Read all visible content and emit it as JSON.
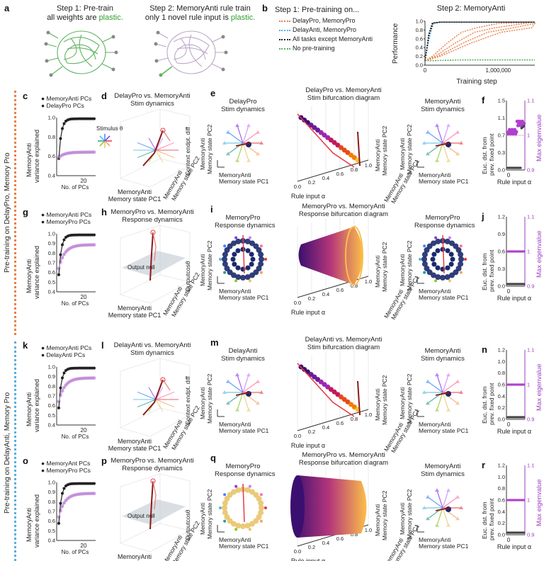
{
  "panel_a": {
    "label": "a",
    "step1_title": "Step 1: Pre-train",
    "step1_sub_pre": "all weights are ",
    "step1_sub_hl": "plastic.",
    "step2_title": "Step 2: MemoryAnti rule train",
    "step2_sub_pre": "only 1 novel rule input is ",
    "step2_sub_hl": "plastic."
  },
  "panel_b": {
    "label": "b",
    "legend_title": "Step 1: Pre-training on...",
    "legend": [
      {
        "label": "DelayPro, MemoryPro",
        "color": "#e8804a"
      },
      {
        "label": "DelayAnti, MemoryPro",
        "color": "#5aaee0"
      },
      {
        "label": "All tasks except MemoryAnti",
        "color": "#222222"
      },
      {
        "label": "No pre-training",
        "color": "#5fb35f"
      }
    ],
    "chart_title": "Step 2: MemoryAnti",
    "ylabel": "Performance",
    "xlabel": "Training step",
    "xtick": "1,000,000",
    "xtick0": "0",
    "yticks": [
      "0.0",
      "0.2",
      "0.4",
      "0.6",
      "0.8",
      "1.0"
    ]
  },
  "side_labels": {
    "top": "Pre-training on DelayPro, Memory Pro",
    "bottom": "Pre-training on DelayAnti, Memory Pro"
  },
  "pc_panels": [
    {
      "label": "c",
      "legend1": "MemoryAnti PCs",
      "legend2": "DelayPro PCs",
      "ylabel1": "MemoryAnti",
      "ylabel2": "variance explained",
      "xlabel": "No. of PCs",
      "xtick": "20",
      "yticks": [
        "0.4",
        "0.6",
        "0.8",
        "1.0"
      ]
    },
    {
      "label": "g",
      "legend1": "MemoryAnti PCs",
      "legend2": "MemoryPro PCs",
      "ylabel1": "MemoryAnti",
      "ylabel2": "variance explained",
      "xlabel": "No. of PCs",
      "xtick": "20",
      "yticks": [
        "0.4",
        "0.5",
        "0.6",
        "0.7",
        "0.8",
        "0.9",
        "1.0"
      ]
    },
    {
      "label": "k",
      "legend1": "MemoryAnti PCs",
      "legend2": "DelayAnti PCs",
      "ylabel1": "MemoryAnti",
      "ylabel2": "variance explained",
      "xlabel": "No. of PCs",
      "xtick": "20",
      "yticks": [
        "0.4",
        "0.5",
        "0.6",
        "0.7",
        "0.8",
        "0.9",
        "1.0"
      ]
    },
    {
      "label": "o",
      "legend1": "MemoryAnt PCs",
      "legend2": "MemoryPro PCs",
      "ylabel1": "MemoryAnti",
      "ylabel2": "variance explained",
      "xlabel": "No. of PCs",
      "xtick": "20",
      "yticks": [
        "0.4",
        "0.5",
        "0.6",
        "0.7",
        "0.8",
        "0.9",
        "1.0"
      ]
    }
  ],
  "dyn3d_panels": [
    {
      "label": "d",
      "title1": "DelayPro vs. MemoryAnti",
      "title2": "Stim dynamics",
      "ax1": "MemoryAnti",
      "ax1b": "Memory state PC1",
      "ax2": "MemoryAnti",
      "ax2b": "Memory state PC2",
      "ax3": "Context endpt. diff",
      "extra": "Stimulus θ"
    },
    {
      "label": "h",
      "title1": "MemoryPro vs. MemoryAnti",
      "title2": "Response dynamics",
      "ax1": "MemoryAnti",
      "ax1b": "Memory state PC1",
      "ax2": "MemoryAnti",
      "ax2b": "Memory state PC2",
      "ax3": "Outputcosθ",
      "extra": "Output null"
    },
    {
      "label": "l",
      "title1": "DelayAnti vs. MemoryAnti",
      "title2": "Stim dynamics",
      "ax1": "MemoryAnti",
      "ax1b": "Memory state PC1",
      "ax2": "MemoryAnti",
      "ax2b": "Memory state PC2",
      "ax3": "Context endpt. diff",
      "extra": ""
    },
    {
      "label": "p",
      "title1": "MemoryPro vs. MemoryAnti",
      "title2": "Response dynamics",
      "ax1": "MemoryAnti",
      "ax1b": "Memory state PC1",
      "ax2": "MemoryAnti",
      "ax2b": "Memory state PC2",
      "ax3": "Outputcosθ",
      "extra": "Output null"
    }
  ],
  "state_panels": [
    {
      "label": "e",
      "title1": "DelayPro",
      "title2": "Stim dynamics",
      "y1": "MemoryAnti",
      "y2": "Memory state PC2",
      "x1": "MemoryAnti",
      "x2": "Memory state PC1"
    },
    {
      "label": "i",
      "title1": "MemoryPro",
      "title2": "Response dynamics",
      "y1": "MemoryAnti",
      "y2": "Memory state PC2",
      "x1": "MemoryAnti",
      "x2": "Memory state PC1"
    },
    {
      "label": "m",
      "title1": "DelayAnti",
      "title2": "Stim dynamics",
      "y1": "MemoryAnti",
      "y2": "Memory state PC2",
      "x1": "MemoryAnti",
      "x2": "Memory state PC1"
    },
    {
      "label": "q",
      "title1": "MemoryPro",
      "title2": "Response dynamics",
      "y1": "MemoryAnti",
      "y2": "Memory state PC2",
      "x1": "MemoryAnti",
      "x2": "Memory state PC1"
    }
  ],
  "bif_panels": [
    {
      "title1": "DelayPro vs. MemoryAnti",
      "title2": "Stim bifurcation diagram",
      "xlabel": "Rule input α",
      "z1": "MemoryAnti",
      "z2": "Memory state PC2",
      "z3": "MemoryAnti",
      "z4": "Memory state PC1"
    },
    {
      "title1": "MemoryPro vs. MemoryAnti",
      "title2": "Response bifurcation diagram",
      "xlabel": "Rule input α",
      "z1": "MemoryAnti",
      "z2": "Memory state PC2",
      "z3": "MemoryAnti",
      "z4": "Memory state PC1"
    },
    {
      "title1": "DelayAnti vs. MemoryAnti",
      "title2": "Stim bifurcation diagram",
      "xlabel": "Rule input α",
      "z1": "MemoryAnti",
      "z2": "Memory state PC2",
      "z3": "MemoryAnti",
      "z4": "Memory state PC1"
    },
    {
      "title1": "MemoryPro vs. MemoryAnti",
      "title2": "Response bifurcation diagram",
      "xlabel": "Rule input α",
      "z1": "MemoryAnti",
      "z2": "Memory state PC2",
      "z3": "MemoryAnti",
      "z4": "Memory state PC1"
    }
  ],
  "bif_ticks": [
    "0.0",
    "0.2",
    "0.4",
    "0.6",
    "0.8",
    "1.0"
  ],
  "anti_panels": [
    {
      "title1": "MemoryAnti",
      "title2": "Stim dynamics",
      "y1": "MemoryAnti",
      "y2": "Memory state PC2",
      "x1": "MemoryAnti",
      "x2": "Memory state PC1"
    },
    {
      "title1": "MemoryPro",
      "title2": "Response dynamics",
      "y1": "MemoryAnti",
      "y2": "Memory state PC2",
      "x1": "MemoryAnti",
      "x2": "Memory state PC1"
    },
    {
      "title1": "MemoryAnti",
      "title2": "Stim dynamics",
      "y1": "MemoryAnti",
      "y2": "Memory state PC2",
      "x1": "MemoryAnti",
      "x2": "Memory state PC1"
    },
    {
      "title1": "MemoryAnti",
      "title2": "Stim dynamics",
      "y1": "MemoryAnti",
      "y2": "Memory state PC2",
      "x1": "MemoryAnti",
      "x2": "Memory state PC1"
    }
  ],
  "eig_panels": [
    {
      "label": "f",
      "ylabel1": "Euc. dst. from",
      "ylabel2": "prev. fixed point",
      "rlabel": "Max eigenvalue",
      "xlabel": "Rule input α",
      "lticks": [
        "0.0",
        "0.3",
        "0.7",
        "1.1",
        "1.5"
      ],
      "rticks": [
        "0.9",
        "1",
        "1.1"
      ],
      "xtick": "0"
    },
    {
      "label": "j",
      "ylabel1": "Euc. dst. from",
      "ylabel2": "prev. fixed point",
      "rlabel": "Max eigenvalue",
      "xlabel": "Rule input α",
      "lticks": [
        "0.0",
        "0.3",
        "0.6",
        "0.9",
        "1.2"
      ],
      "rticks": [
        "0.9",
        "1",
        "1.1"
      ],
      "xtick": "0"
    },
    {
      "label": "n",
      "ylabel1": "Euc. dst. from",
      "ylabel2": "prev. fixed point",
      "rlabel": "Max eigenvalue",
      "xlabel": "Rule input α",
      "lticks": [
        "0.0",
        "0.2",
        "0.4",
        "0.6",
        "0.8",
        "1.0",
        "1.2"
      ],
      "rticks": [
        "0.9",
        "1",
        "1.1"
      ],
      "xtick": "0"
    },
    {
      "label": "r",
      "ylabel1": "Euc. dst. from",
      "ylabel2": "prev. fixed point",
      "rlabel": "Max eigenvalue",
      "xlabel": "Rule input α",
      "lticks": [
        "0.0",
        "0.2",
        "0.4",
        "0.6",
        "0.8",
        "1.0",
        "1.2"
      ],
      "rticks": [
        "0.9",
        "1",
        "1.1"
      ],
      "xtick": "0"
    }
  ],
  "bif_labels": [
    "",
    "",
    "",
    ""
  ],
  "chart_data": {
    "type": "line",
    "title": "Step 2: MemoryAnti",
    "xlabel": "Training step",
    "ylabel": "Performance",
    "ylim": [
      0,
      1
    ],
    "series": [
      {
        "name": "DelayPro, MemoryPro",
        "x": [
          0,
          100000,
          300000,
          500000,
          700000,
          1000000,
          1500000
        ],
        "y": [
          0.1,
          0.2,
          0.5,
          0.75,
          0.85,
          0.95,
          0.98
        ]
      },
      {
        "name": "DelayAnti, MemoryPro",
        "x": [
          0,
          50000,
          100000,
          200000,
          500000,
          1000000,
          1500000
        ],
        "y": [
          0.1,
          0.6,
          0.95,
          0.98,
          0.98,
          0.98,
          0.98
        ]
      },
      {
        "name": "All tasks except MemoryAnti",
        "x": [
          0,
          50000,
          100000,
          200000,
          500000,
          1000000,
          1500000
        ],
        "y": [
          0.1,
          0.7,
          0.96,
          0.98,
          0.98,
          0.98,
          0.98
        ]
      },
      {
        "name": "No pre-training",
        "x": [
          0,
          500000,
          1000000,
          1500000
        ],
        "y": [
          0.1,
          0.12,
          0.12,
          0.12
        ]
      }
    ]
  }
}
